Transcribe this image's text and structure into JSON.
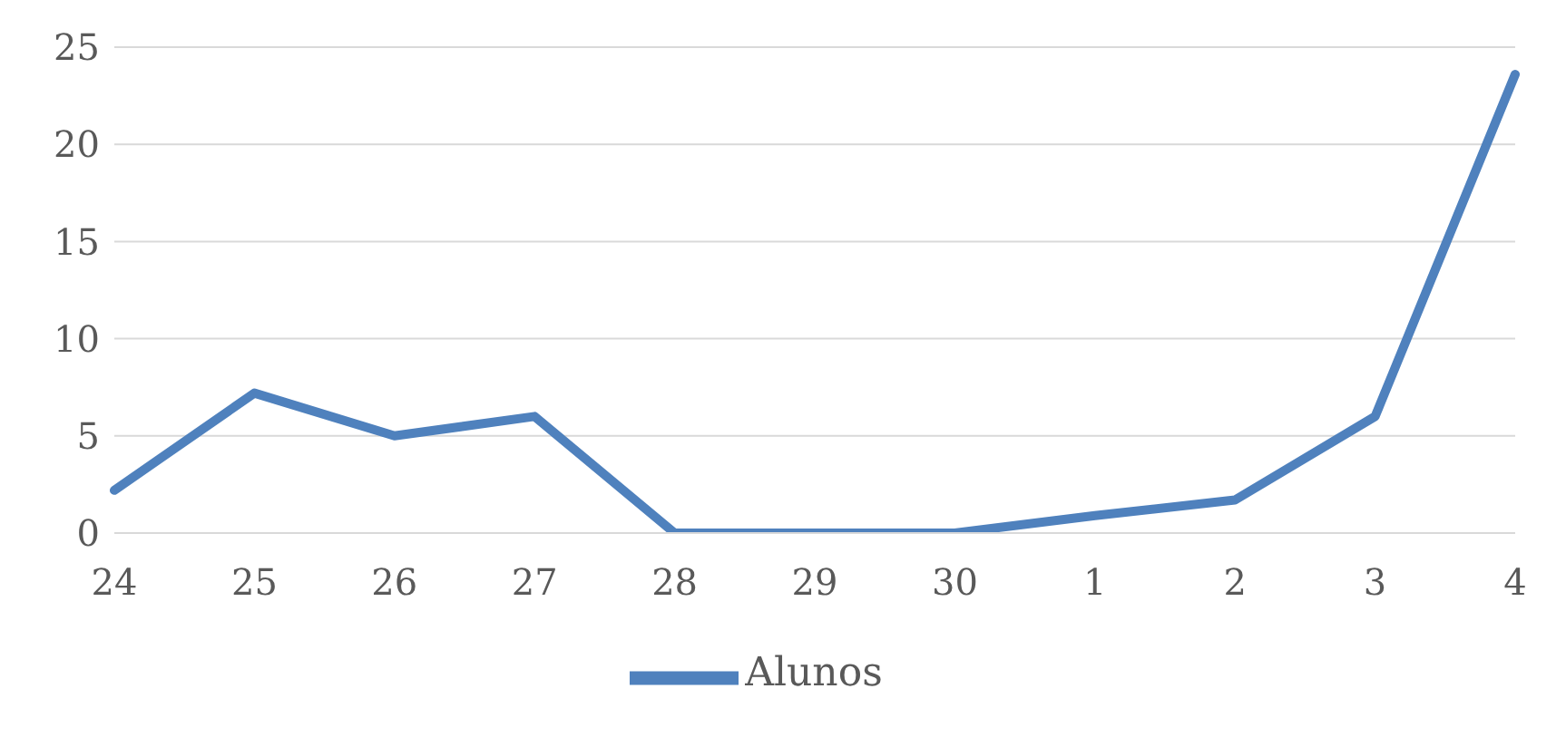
{
  "chart_data": {
    "type": "line",
    "categories": [
      "24",
      "25",
      "26",
      "27",
      "28",
      "29",
      "30",
      "1",
      "2",
      "3",
      "4"
    ],
    "series": [
      {
        "name": "Alunos",
        "color": "#4f81bd",
        "values": [
          2.2,
          7.2,
          5.0,
          6.0,
          0,
          0,
          0,
          0.9,
          1.7,
          6.0,
          23.6
        ]
      }
    ],
    "ylim": [
      0,
      25
    ],
    "yticks": [
      0,
      5,
      10,
      15,
      20,
      25
    ],
    "grid": "y",
    "legend": "bottom",
    "marker": "none",
    "line_style": "solid"
  }
}
